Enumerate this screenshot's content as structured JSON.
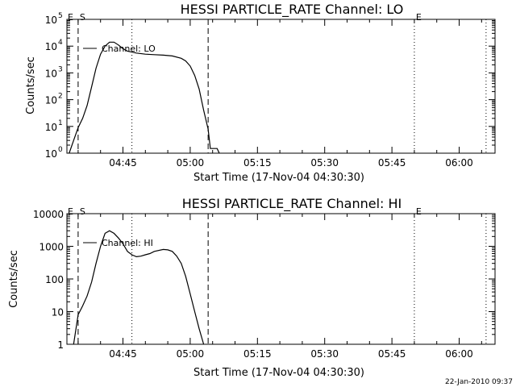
{
  "chart_data": [
    {
      "type": "line",
      "title": "HESSI PARTICLE_RATE Channel: LO",
      "xlabel": "Start Time (17-Nov-04 04:30:30)",
      "ylabel": "Counts/sec",
      "yscale": "log",
      "ylim": [
        1,
        100000
      ],
      "xlim": [
        "04:32:30",
        "06:08:00"
      ],
      "x_ticks": [
        "04:45",
        "05:00",
        "05:15",
        "05:30",
        "05:45",
        "06:00"
      ],
      "y_ticks": [
        {
          "value": 1,
          "label": "10",
          "exp": "0"
        },
        {
          "value": 10,
          "label": "10",
          "exp": "1"
        },
        {
          "value": 100,
          "label": "10",
          "exp": "2"
        },
        {
          "value": 1000,
          "label": "10",
          "exp": "3"
        },
        {
          "value": 10000,
          "label": "10",
          "exp": "4"
        },
        {
          "value": 100000,
          "label": "10",
          "exp": "5"
        }
      ],
      "legend": [
        "Channel: LO"
      ],
      "legend_position": "top-left",
      "markers": [
        {
          "label": "S",
          "time": "04:35:00",
          "style": "dashed"
        },
        {
          "label": "",
          "time": "04:47:00",
          "style": "dotted"
        },
        {
          "label": "",
          "time": "05:04:00",
          "style": "dashed"
        },
        {
          "label": "E",
          "time": "05:50:00",
          "style": "dotted"
        },
        {
          "label": "",
          "time": "06:06:00",
          "style": "dotted"
        }
      ],
      "corner_label": "E",
      "series": [
        {
          "name": "Channel: LO",
          "x": [
            "04:33:00",
            "04:34:00",
            "04:35:00",
            "04:36:00",
            "04:37:00",
            "04:38:00",
            "04:39:00",
            "04:40:00",
            "04:41:00",
            "04:42:00",
            "04:43:00",
            "04:44:00",
            "04:45:00",
            "04:46:00",
            "04:47:00",
            "04:48:00",
            "04:50:00",
            "04:52:00",
            "04:54:00",
            "04:56:00",
            "04:58:00",
            "04:59:00",
            "05:00:00",
            "05:01:00",
            "05:02:00",
            "05:03:00",
            "05:04:00",
            "05:04:30",
            "05:05:00",
            "05:06:00",
            "05:06:30"
          ],
          "y": [
            1,
            3,
            9,
            20,
            60,
            300,
            1500,
            5000,
            10000,
            14000,
            14000,
            11000,
            8000,
            6500,
            6000,
            5500,
            5000,
            4800,
            4600,
            4300,
            3500,
            2800,
            1800,
            800,
            250,
            40,
            8,
            1.5,
            1.5,
            1.5,
            1
          ]
        }
      ]
    },
    {
      "type": "line",
      "title": "HESSI PARTICLE_RATE Channel: HI",
      "xlabel": "Start Time (17-Nov-04 04:30:30)",
      "ylabel": "Counts/sec",
      "yscale": "log",
      "ylim": [
        1,
        10000
      ],
      "xlim": [
        "04:32:30",
        "06:08:00"
      ],
      "x_ticks": [
        "04:45",
        "05:00",
        "05:15",
        "05:30",
        "05:45",
        "06:00"
      ],
      "y_ticks": [
        {
          "value": 1,
          "label": "1"
        },
        {
          "value": 10,
          "label": "10"
        },
        {
          "value": 100,
          "label": "100"
        },
        {
          "value": 1000,
          "label": "1000"
        },
        {
          "value": 10000,
          "label": "10000"
        }
      ],
      "legend": [
        "Channel: HI"
      ],
      "legend_position": "top-left",
      "markers": [
        {
          "label": "S",
          "time": "04:35:00",
          "style": "dashed"
        },
        {
          "label": "",
          "time": "04:47:00",
          "style": "dotted"
        },
        {
          "label": "",
          "time": "05:04:00",
          "style": "dashed"
        },
        {
          "label": "E",
          "time": "05:50:00",
          "style": "dotted"
        },
        {
          "label": "",
          "time": "06:06:00",
          "style": "dotted"
        }
      ],
      "corner_label": "E",
      "series": [
        {
          "name": "Channel: HI",
          "x": [
            "04:34:00",
            "04:35:00",
            "04:36:00",
            "04:37:00",
            "04:38:00",
            "04:39:00",
            "04:40:00",
            "04:41:00",
            "04:42:00",
            "04:43:00",
            "04:44:00",
            "04:45:00",
            "04:46:00",
            "04:47:00",
            "04:48:00",
            "04:49:00",
            "04:50:00",
            "04:51:00",
            "04:52:00",
            "04:54:00",
            "04:55:00",
            "04:56:00",
            "04:57:00",
            "04:58:00",
            "04:59:00",
            "05:00:00",
            "05:01:00",
            "05:02:00",
            "05:03:00"
          ],
          "y": [
            1,
            8,
            15,
            30,
            80,
            300,
            1000,
            2500,
            3000,
            2500,
            1800,
            1200,
            700,
            550,
            480,
            500,
            550,
            600,
            700,
            800,
            780,
            700,
            500,
            300,
            120,
            35,
            10,
            3,
            1
          ]
        }
      ]
    }
  ],
  "footer_stamp": "22-Jan-2010 09:37"
}
